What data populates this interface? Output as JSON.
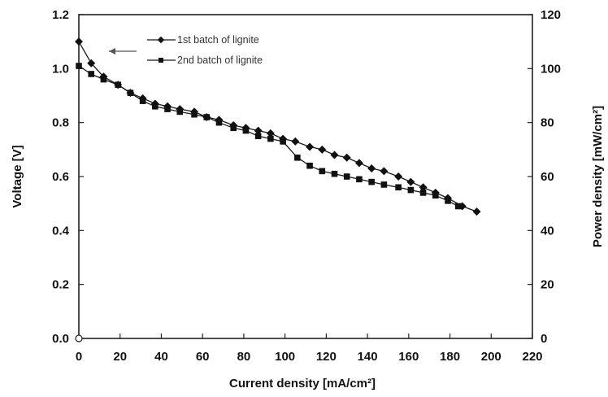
{
  "chart_data": {
    "type": "line",
    "xlabel": "Current density [mA/cm²]",
    "ylabel": "Voltage [V]",
    "y2label": "Power density [mW/cm²]",
    "xlim": [
      0,
      220
    ],
    "ylim": [
      0.0,
      1.2
    ],
    "y2lim": [
      0,
      120
    ],
    "xticks": [
      "0",
      "20",
      "40",
      "60",
      "80",
      "100",
      "120",
      "140",
      "160",
      "180",
      "200",
      "220"
    ],
    "yticks": [
      "0.0",
      "0.2",
      "0.4",
      "0.6",
      "0.8",
      "1.0",
      "1.2"
    ],
    "y2ticks": [
      "0",
      "20",
      "40",
      "60",
      "80",
      "100",
      "120"
    ],
    "legend_position": "top-left",
    "grid": false,
    "series": [
      {
        "name": "1st batch of lignite",
        "marker": "diamond",
        "x": [
          0,
          6,
          12,
          19,
          25,
          31,
          37,
          43,
          49,
          56,
          62,
          68,
          75,
          81,
          87,
          93,
          99,
          105,
          112,
          118,
          124,
          130,
          136,
          142,
          148,
          155,
          161,
          167,
          173,
          179,
          186,
          193
        ],
        "y": [
          1.1,
          1.02,
          0.97,
          0.94,
          0.91,
          0.89,
          0.87,
          0.86,
          0.85,
          0.84,
          0.82,
          0.81,
          0.79,
          0.78,
          0.77,
          0.76,
          0.74,
          0.73,
          0.71,
          0.7,
          0.68,
          0.67,
          0.65,
          0.63,
          0.62,
          0.6,
          0.58,
          0.56,
          0.54,
          0.52,
          0.49,
          0.47
        ]
      },
      {
        "name": "2nd batch of lignite",
        "marker": "square",
        "x": [
          0,
          6,
          12,
          19,
          25,
          31,
          37,
          43,
          49,
          56,
          62,
          68,
          75,
          81,
          87,
          93,
          99,
          106,
          112,
          118,
          124,
          130,
          136,
          142,
          148,
          155,
          161,
          167,
          173,
          179,
          184
        ],
        "y": [
          1.01,
          0.98,
          0.96,
          0.94,
          0.91,
          0.88,
          0.86,
          0.85,
          0.84,
          0.83,
          0.82,
          0.8,
          0.78,
          0.77,
          0.75,
          0.74,
          0.73,
          0.67,
          0.64,
          0.62,
          0.61,
          0.6,
          0.59,
          0.58,
          0.57,
          0.56,
          0.55,
          0.54,
          0.53,
          0.51,
          0.49
        ]
      }
    ]
  }
}
